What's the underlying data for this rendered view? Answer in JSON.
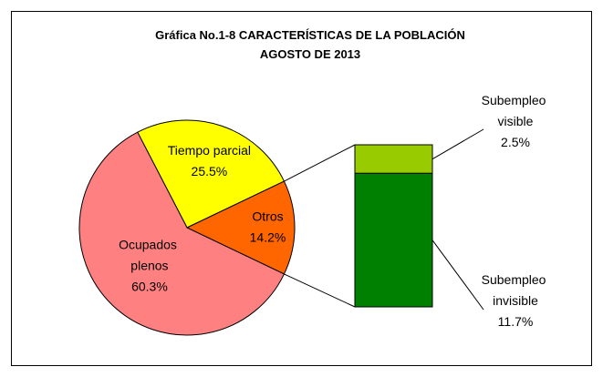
{
  "chart_data": {
    "type": "pie-of-bar",
    "title": "Gráfica No.1-8  CARACTERÍSTICAS DE LA POBLACIÓN",
    "subtitle": "AGOSTO DE 2013",
    "categories": [
      "Tiempo parcial",
      "Otros",
      "Ocupados plenos"
    ],
    "values": [
      25.5,
      14.2,
      60.3
    ],
    "value_labels": [
      "25.5%",
      "14.2%",
      "60.3%"
    ],
    "colors": [
      "#ffff00",
      "#ff6600",
      "#ff8080"
    ],
    "breakdown": {
      "categories": [
        "Subempleo visible",
        "Subempleo invisible"
      ],
      "values": [
        2.5,
        11.7
      ],
      "value_labels": [
        "2.5%",
        "11.7%"
      ],
      "colors": [
        "#99cc00",
        "#008000"
      ]
    }
  }
}
